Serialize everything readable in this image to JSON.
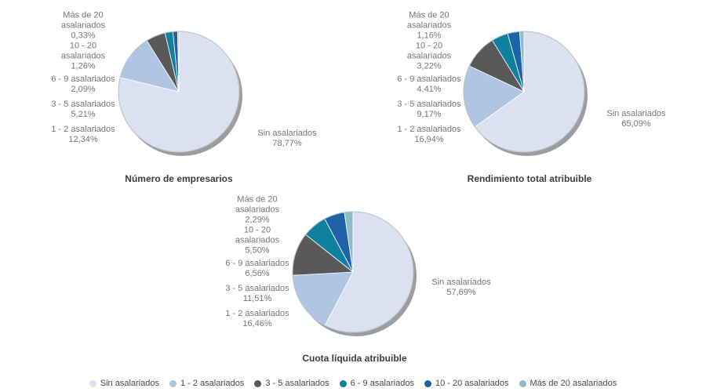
{
  "palette": {
    "slice_colors": [
      "#dbe1f1",
      "#aec6e3",
      "#595959",
      "#10809f",
      "#1e62aa",
      "#8fbccb"
    ],
    "shadow": "#9d9d9d",
    "outline": "#b7bdc9",
    "label_text": "#767676",
    "title_text": "#3d3d3d",
    "legend_text": "#4a4a4a",
    "background": "#ffffff"
  },
  "legend": {
    "items": [
      {
        "label": "Sin asalariados",
        "color": "#dbe1f1"
      },
      {
        "label": "1 - 2 asalariados",
        "color": "#aec6e3"
      },
      {
        "label": "3 - 5 asalariados",
        "color": "#595959"
      },
      {
        "label": "6 - 9 asalariados",
        "color": "#10809f"
      },
      {
        "label": "10 - 20 asalariados",
        "color": "#1e62aa"
      },
      {
        "label": "Más de 20 asalariados",
        "color": "#8fbccb"
      }
    ]
  },
  "chart_data": [
    {
      "type": "pie",
      "title": "Número de empresarios",
      "categories": [
        "Sin asalariados",
        "1 - 2 asalariados",
        "3 - 5 asalariados",
        "6 - 9 asalariados",
        "10 - 20 asalariados",
        "Más de 20 asalariados"
      ],
      "values": [
        78.77,
        12.34,
        5.21,
        2.09,
        1.26,
        0.33
      ],
      "value_labels": [
        "78,77%",
        "12,34%",
        "5,21%",
        "2,09%",
        "1,26%",
        "0,33%"
      ],
      "start_angle_deg": 0,
      "direction": "clockwise",
      "callout_labels": {
        "left": [
          {
            "lines": [
              "Más de 20",
              "asalariados",
              "0,33%"
            ]
          },
          {
            "lines": [
              "10 - 20",
              "asalariados",
              "1,26%"
            ]
          },
          {
            "lines": [
              "6 - 9 asalariados",
              "2,09%"
            ]
          },
          {
            "lines": [
              "3 - 5 asalariados",
              "5,21%"
            ]
          },
          {
            "lines": [
              "1 - 2 asalariados",
              "12,34%"
            ]
          }
        ],
        "right": {
          "lines": [
            "Sin asalariados",
            "78,77%"
          ]
        }
      }
    },
    {
      "type": "pie",
      "title": "Rendimiento total atribuible",
      "categories": [
        "Sin asalariados",
        "1 - 2 asalariados",
        "3 - 5 asalariados",
        "6 - 9 asalariados",
        "10 - 20 asalariados",
        "Más de 20 asalariados"
      ],
      "values": [
        65.09,
        16.94,
        9.17,
        4.41,
        3.22,
        1.16
      ],
      "value_labels": [
        "65,09%",
        "16,94%",
        "9,17%",
        "4,41%",
        "3,22%",
        "1,16%"
      ],
      "start_angle_deg": 0,
      "direction": "clockwise",
      "callout_labels": {
        "left": [
          {
            "lines": [
              "Más de 20",
              "asalariados",
              "1,16%"
            ]
          },
          {
            "lines": [
              "10 - 20",
              "asalariados",
              "3,22%"
            ]
          },
          {
            "lines": [
              "6 - 9 asalariados",
              "4,41%"
            ]
          },
          {
            "lines": [
              "3 - 5 asalariados",
              "9,17%"
            ]
          },
          {
            "lines": [
              "1 - 2 asalariados",
              "16,94%"
            ]
          }
        ],
        "right": {
          "lines": [
            "Sin asalariados",
            "65,09%"
          ]
        }
      }
    },
    {
      "type": "pie",
      "title": "Cuota líquida atribuible",
      "categories": [
        "Sin asalariados",
        "1 - 2 asalariados",
        "3 - 5 asalariados",
        "6 - 9 asalariados",
        "10 - 20 asalariados",
        "Más de 20 asalariados"
      ],
      "values": [
        57.69,
        16.46,
        11.51,
        6.56,
        5.5,
        2.29
      ],
      "value_labels": [
        "57,69%",
        "16,46%",
        "11,51%",
        "6,56%",
        "5,50%",
        "2,29%"
      ],
      "start_angle_deg": 0,
      "direction": "clockwise",
      "callout_labels": {
        "left": [
          {
            "lines": [
              "Más de 20",
              "asalariados",
              "2,29%"
            ]
          },
          {
            "lines": [
              "10 - 20",
              "asalariados",
              "5,50%"
            ]
          },
          {
            "lines": [
              "6 - 9 asalariados",
              "6,56%"
            ]
          },
          {
            "lines": [
              "3 - 5 asalariados",
              "11,51%"
            ]
          },
          {
            "lines": [
              "1 - 2 asalariados",
              "16,46%"
            ]
          }
        ],
        "right": {
          "lines": [
            "Sin asalariados",
            "57,69%"
          ]
        }
      }
    }
  ]
}
